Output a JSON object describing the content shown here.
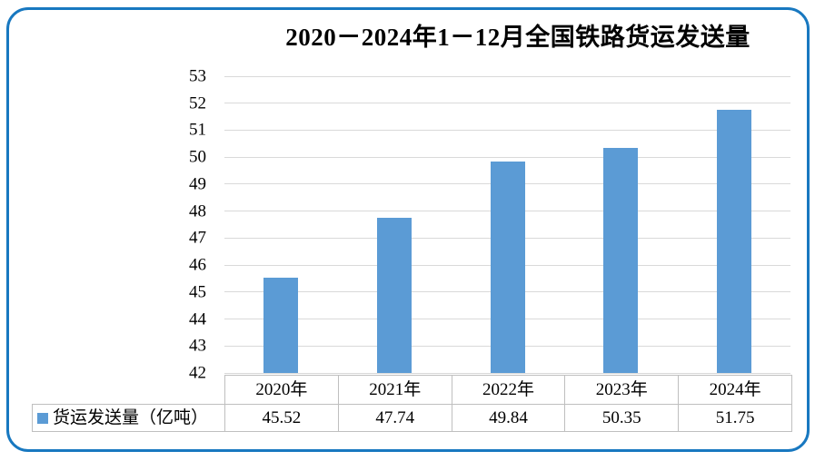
{
  "frame": {
    "border_color": "#1878c0"
  },
  "chart_data": {
    "type": "bar",
    "title": "2020－2024年1－12月全国铁路货运发送量",
    "categories": [
      "2020年",
      "2021年",
      "2022年",
      "2023年",
      "2024年"
    ],
    "series": [
      {
        "name": "货运发送量（亿吨）",
        "color": "#5b9bd5",
        "values": [
          45.52,
          47.74,
          49.84,
          50.35,
          51.75
        ]
      }
    ],
    "ylabel": "",
    "xlabel": "",
    "ylim": [
      42,
      53
    ],
    "ytick_step": 1,
    "yticks": [
      42,
      43,
      44,
      45,
      46,
      47,
      48,
      49,
      50,
      51,
      52,
      53
    ],
    "grid": true,
    "gridline_color": "#d9d9d9",
    "legend_position": "data-table-left",
    "value_decimals": 2,
    "table_border_color": "#bfbfbf"
  }
}
